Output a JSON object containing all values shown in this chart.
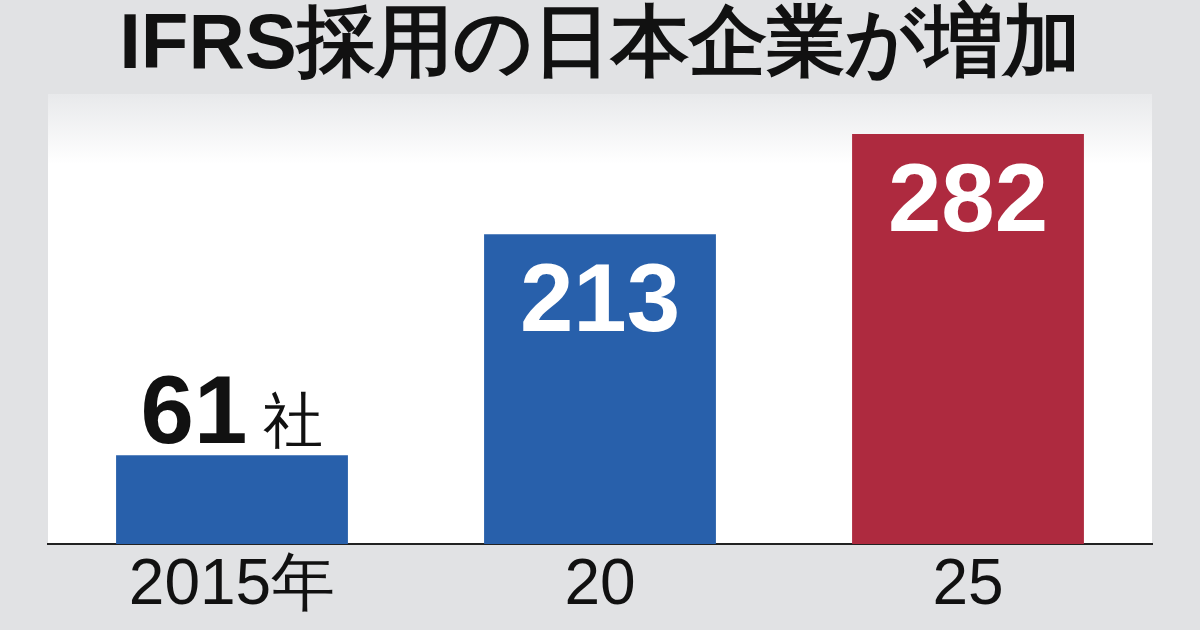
{
  "chart_data": {
    "type": "bar",
    "title": "IFRS採用の日本企業が増加",
    "categories": [
      "2015年",
      "20",
      "25"
    ],
    "values": [
      61,
      213,
      282
    ],
    "colors": [
      "#2860ab",
      "#2860ab",
      "#ae2a3f"
    ],
    "value_labels": [
      "61社",
      "213",
      "282"
    ],
    "tick_labels": "x"
  }
}
